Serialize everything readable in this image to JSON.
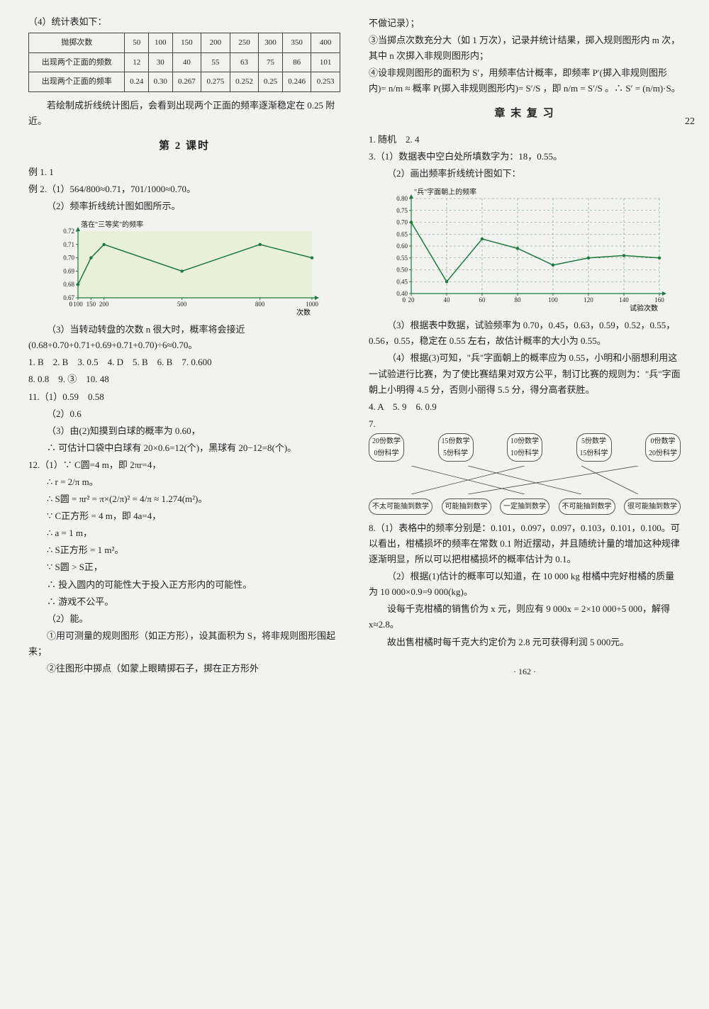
{
  "page_number_side": "22",
  "footer": "· 162 ·",
  "left": {
    "intro": "（4）统计表如下：",
    "table": {
      "headers": [
        "抛掷次数",
        "50",
        "100",
        "150",
        "200",
        "250",
        "300",
        "350",
        "400"
      ],
      "row1": [
        "出现两个正面的频数",
        "12",
        "30",
        "40",
        "55",
        "63",
        "75",
        "86",
        "101"
      ],
      "row2": [
        "出现两个正面的频率",
        "0.24",
        "0.30",
        "0.267",
        "0.275",
        "0.252",
        "0.25",
        "0.246",
        "0.253"
      ]
    },
    "after_table": "若绘制成折线统计图后，会看到出现两个正面的频率逐渐稳定在 0.25 附近。",
    "section_title": "第 2 课时",
    "ex1": "例 1. 1",
    "ex2a": "例 2.（1）564/800≈0.71，701/1000≈0.70。",
    "ex2b": "（2）频率折线统计图如图所示。",
    "chart1": {
      "title": "落在\"三等奖\"的频率",
      "xlabel": "次数",
      "y_ticks": [
        0.67,
        0.68,
        0.69,
        0.7,
        0.71,
        0.72
      ],
      "x_ticks": [
        100,
        150,
        200,
        500,
        800,
        1000
      ],
      "points_x": [
        100,
        150,
        200,
        500,
        800,
        1000
      ],
      "points_y": [
        0.68,
        0.7,
        0.71,
        0.69,
        0.71,
        0.7
      ],
      "line_color": "#1a7a3a",
      "axis_color": "#1a7a3a",
      "bg": "#e8f0d8"
    },
    "ex2c": "（3）当转动转盘的次数 n 很大时，概率将会接近 (0.68+0.70+0.71+0.69+0.71+0.70)÷6≈0.70。",
    "answers1": "1. B　2. B　3. 0.5　4. D　5. B　6. B　7. 0.600",
    "answers2": "8. 0.8　9. ③　10. 48",
    "q11": {
      "head": "11.（1）0.59　0.58",
      "p2": "（2）0.6",
      "p3": "（3）由(2)知摸到白球的概率为 0.60，",
      "p3b": "∴ 可估计口袋中白球有 20×0.6=12(个)，黑球有 20−12=8(个)。"
    },
    "q12": {
      "head": "12.（1）∵ C圆=4 m，即 2πr=4，",
      "lines": [
        "∴ r = 2/π m。",
        "∴ S圆 = πr² = π×(2/π)² = 4/π ≈ 1.274(m²)。",
        "∵ C正方形 = 4 m，即 4a=4，",
        "∴ a = 1 m，",
        "∴ S正方形 = 1 m²。",
        "∵ S圆 > S正，",
        "∴ 投入圆内的可能性大于投入正方形内的可能性。",
        "∴ 游戏不公平。",
        "（2）能。",
        "①用可测量的规则图形（如正方形），设其面积为 S，将非规则图形围起来；",
        "②往图形中掷点（如蒙上眼睛掷石子，掷在正方形外"
      ]
    }
  },
  "right": {
    "cont": [
      "不做记录）；",
      "③当掷点次数充分大（如 1 万次），记录并统计结果，掷入规则图形内 m 次，其中 n 次掷入非规则图形内；",
      "④设非规则图形的面积为 S′，用频率估计概率，即频率 P′(掷入非规则图形内)= n/m ≈ 概率 P(掷入非规则图形内)= S′/S ，即 n/m = S′/S 。∴ S′ = (n/m)·S。"
    ],
    "section_title": "章 末 复 习",
    "a1": "1. 随机　2. 4",
    "q3": {
      "p1": "3.（1）数据表中空白处所填数字为：18，0.55。",
      "p2": "（2）画出频率折线统计图如下：",
      "chart": {
        "title": "\"兵\"字面朝上的频率",
        "xlabel": "试验次数",
        "y_ticks": [
          0.4,
          0.45,
          0.5,
          0.55,
          0.6,
          0.65,
          0.7,
          0.75,
          0.8
        ],
        "x_ticks": [
          20,
          40,
          60,
          80,
          100,
          120,
          140,
          160
        ],
        "points_x": [
          20,
          40,
          60,
          80,
          100,
          120,
          140,
          160
        ],
        "points_y": [
          0.7,
          0.45,
          0.63,
          0.59,
          0.52,
          0.55,
          0.56,
          0.55
        ],
        "line_color": "#1a7a3a",
        "axis_color": "#1a7a3a",
        "grid_color": "#6aa06a"
      },
      "p3": "（3）根据表中数据，试验频率为 0.70，0.45，0.63，0.59，0.52，0.55，0.56，0.55，稳定在 0.55 左右，故估计概率的大小为 0.55。",
      "p4": "（4）根据(3)可知，\"兵\"字面朝上的概率应为 0.55，小明和小丽想利用这一试验进行比赛，为了使比赛结果对双方公平，制订比赛的规则为：\"兵\"字面朝上小明得 4.5 分，否则小丽得 5.5 分，得分高者获胜。"
    },
    "a4": "4. A　5. 9　6. 0.9",
    "q7": {
      "label": "7.",
      "top": [
        "20份数学\n0份科学",
        "15份数学\n5份科学",
        "10份数学\n10份科学",
        "5份数学\n15份科学",
        "0份数学\n20份科学"
      ],
      "bottom": [
        "不太可能抽到数学",
        "可能抽到数学",
        "一定抽到数学",
        "不可能抽到数学",
        "很可能抽到数学"
      ]
    },
    "q8": {
      "p1": "8.（1）表格中的频率分别是：0.101，0.097，0.097，0.103，0.101，0.100。可以看出，柑橘损坏的频率在常数 0.1 附近摆动，并且随统计量的增加这种规律逐渐明显，所以可以把柑橘损坏的概率估计为 0.1。",
      "p2": "（2）根据(1)估计的概率可以知道，在 10 000 kg 柑橘中完好柑橘的质量为 10 000×0.9=9 000(kg)。",
      "p3": "设每千克柑橘的销售价为 x 元，则应有 9 000x = 2×10 000+5 000，解得 x≈2.8。",
      "p4": "故出售柑橘时每千克大约定价为 2.8 元可获得利润 5 000元。"
    }
  }
}
